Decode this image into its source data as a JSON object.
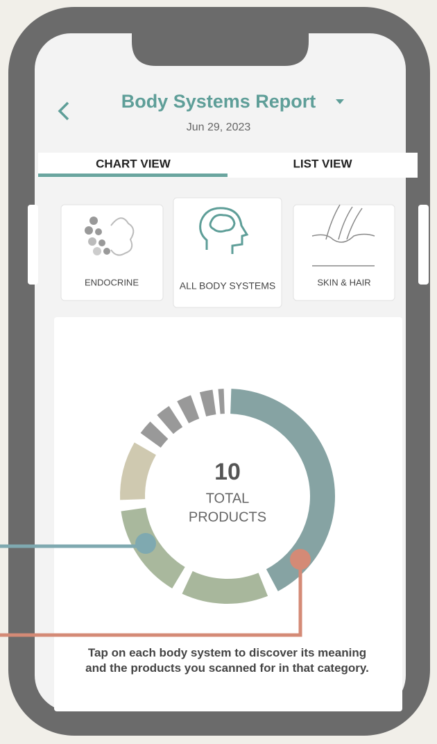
{
  "header": {
    "title": "Body Systems Report",
    "date": "Jun 29, 2023"
  },
  "tabs": [
    "CHART VIEW",
    "LIST VIEW"
  ],
  "cards": [
    "ENDOCRINE",
    "ALL BODY SYSTEMS",
    "SKIN & HAIR"
  ],
  "summary": {
    "count": "10",
    "label_top": "TOTAL",
    "label_bottom": "PRODUCTS"
  },
  "footer": "Tap on each body system to discover its meaning and the products you scanned for in that category."
}
